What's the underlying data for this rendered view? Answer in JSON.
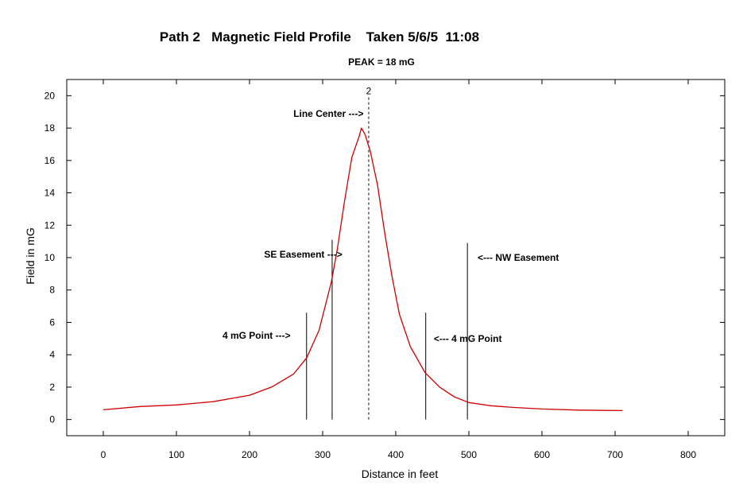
{
  "chart_data": {
    "type": "line",
    "title": "Path 2   Magnetic Field Profile    Taken 5/6/5  11:08",
    "subtitle": "PEAK = 18 mG",
    "xlabel": "Distance in feet",
    "ylabel": "Field in mG",
    "xlim": [
      -50,
      850
    ],
    "ylim": [
      -1,
      21
    ],
    "xticks": [
      0,
      100,
      200,
      300,
      400,
      500,
      600,
      700,
      800
    ],
    "yticks": [
      0,
      2,
      4,
      6,
      8,
      10,
      12,
      14,
      16,
      18,
      20
    ],
    "grid": false,
    "line_color": "#cc0000",
    "series": [
      {
        "x": [
          0,
          50,
          100,
          150,
          200,
          230,
          260,
          278,
          295,
          312,
          320,
          330,
          340,
          350,
          353,
          358,
          365,
          375,
          385,
          395,
          405,
          420,
          440,
          460,
          480,
          500,
          530,
          560,
          600,
          650,
          710
        ],
        "y": [
          0.6,
          0.8,
          0.9,
          1.1,
          1.5,
          2.0,
          2.8,
          3.8,
          5.5,
          8.5,
          10.5,
          13.5,
          16.2,
          17.5,
          18.0,
          17.6,
          16.6,
          14.5,
          11.5,
          8.8,
          6.5,
          4.5,
          2.9,
          2.0,
          1.4,
          1.05,
          0.85,
          0.75,
          0.65,
          0.58,
          0.55
        ]
      }
    ],
    "vertical_lines": [
      {
        "x": 278,
        "y_top": 6.6,
        "style": "solid"
      },
      {
        "x": 313,
        "y_top": 11.1,
        "style": "solid"
      },
      {
        "x": 363,
        "y_top": 19.9,
        "style": "dashed",
        "label": "2"
      },
      {
        "x": 441,
        "y_top": 6.6,
        "style": "solid"
      },
      {
        "x": 498,
        "y_top": 10.9,
        "style": "solid"
      }
    ],
    "annotations": [
      {
        "text": "Line Center --->",
        "x": 260,
        "y": 18.7
      },
      {
        "text": "SE Easement --->",
        "x": 220,
        "y": 10.0
      },
      {
        "text": "4 mG Point --->",
        "x": 163,
        "y": 5.0
      },
      {
        "text": "<--- 4 mG Point",
        "x": 452,
        "y": 4.8
      },
      {
        "text": "<--- NW Easement",
        "x": 512,
        "y": 9.8
      }
    ]
  }
}
